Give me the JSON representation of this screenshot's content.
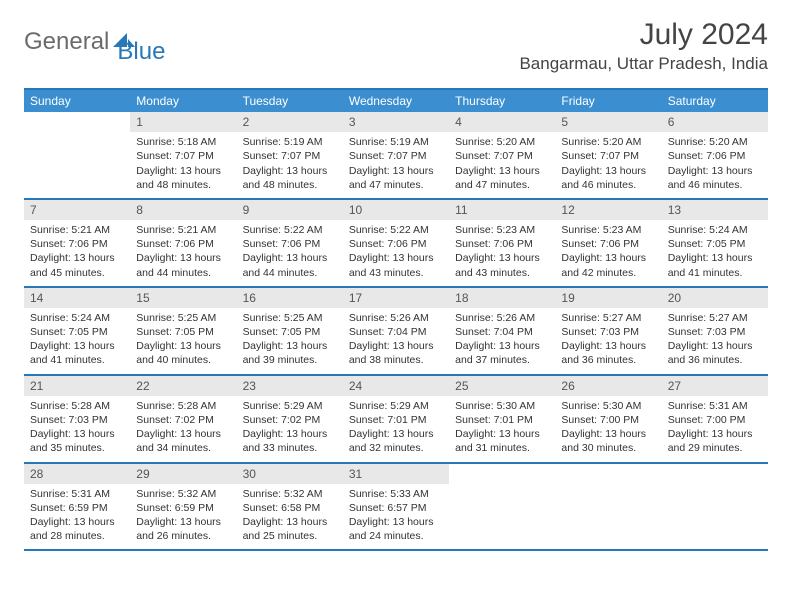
{
  "logo": {
    "text1": "General",
    "text2": "Blue"
  },
  "title": "July 2024",
  "location": "Bangarmau, Uttar Pradesh, India",
  "colors": {
    "header_bar": "#3b8fd0",
    "border": "#2878b8",
    "daynum_bg": "#e8e8e8",
    "text": "#333333"
  },
  "daysOfWeek": [
    "Sunday",
    "Monday",
    "Tuesday",
    "Wednesday",
    "Thursday",
    "Friday",
    "Saturday"
  ],
  "weeks": [
    [
      {
        "n": "",
        "empty": true
      },
      {
        "n": "1",
        "sr": "5:18 AM",
        "ss": "7:07 PM",
        "dl": "13 hours and 48 minutes."
      },
      {
        "n": "2",
        "sr": "5:19 AM",
        "ss": "7:07 PM",
        "dl": "13 hours and 48 minutes."
      },
      {
        "n": "3",
        "sr": "5:19 AM",
        "ss": "7:07 PM",
        "dl": "13 hours and 47 minutes."
      },
      {
        "n": "4",
        "sr": "5:20 AM",
        "ss": "7:07 PM",
        "dl": "13 hours and 47 minutes."
      },
      {
        "n": "5",
        "sr": "5:20 AM",
        "ss": "7:07 PM",
        "dl": "13 hours and 46 minutes."
      },
      {
        "n": "6",
        "sr": "5:20 AM",
        "ss": "7:06 PM",
        "dl": "13 hours and 46 minutes."
      }
    ],
    [
      {
        "n": "7",
        "sr": "5:21 AM",
        "ss": "7:06 PM",
        "dl": "13 hours and 45 minutes."
      },
      {
        "n": "8",
        "sr": "5:21 AM",
        "ss": "7:06 PM",
        "dl": "13 hours and 44 minutes."
      },
      {
        "n": "9",
        "sr": "5:22 AM",
        "ss": "7:06 PM",
        "dl": "13 hours and 44 minutes."
      },
      {
        "n": "10",
        "sr": "5:22 AM",
        "ss": "7:06 PM",
        "dl": "13 hours and 43 minutes."
      },
      {
        "n": "11",
        "sr": "5:23 AM",
        "ss": "7:06 PM",
        "dl": "13 hours and 43 minutes."
      },
      {
        "n": "12",
        "sr": "5:23 AM",
        "ss": "7:06 PM",
        "dl": "13 hours and 42 minutes."
      },
      {
        "n": "13",
        "sr": "5:24 AM",
        "ss": "7:05 PM",
        "dl": "13 hours and 41 minutes."
      }
    ],
    [
      {
        "n": "14",
        "sr": "5:24 AM",
        "ss": "7:05 PM",
        "dl": "13 hours and 41 minutes."
      },
      {
        "n": "15",
        "sr": "5:25 AM",
        "ss": "7:05 PM",
        "dl": "13 hours and 40 minutes."
      },
      {
        "n": "16",
        "sr": "5:25 AM",
        "ss": "7:05 PM",
        "dl": "13 hours and 39 minutes."
      },
      {
        "n": "17",
        "sr": "5:26 AM",
        "ss": "7:04 PM",
        "dl": "13 hours and 38 minutes."
      },
      {
        "n": "18",
        "sr": "5:26 AM",
        "ss": "7:04 PM",
        "dl": "13 hours and 37 minutes."
      },
      {
        "n": "19",
        "sr": "5:27 AM",
        "ss": "7:03 PM",
        "dl": "13 hours and 36 minutes."
      },
      {
        "n": "20",
        "sr": "5:27 AM",
        "ss": "7:03 PM",
        "dl": "13 hours and 36 minutes."
      }
    ],
    [
      {
        "n": "21",
        "sr": "5:28 AM",
        "ss": "7:03 PM",
        "dl": "13 hours and 35 minutes."
      },
      {
        "n": "22",
        "sr": "5:28 AM",
        "ss": "7:02 PM",
        "dl": "13 hours and 34 minutes."
      },
      {
        "n": "23",
        "sr": "5:29 AM",
        "ss": "7:02 PM",
        "dl": "13 hours and 33 minutes."
      },
      {
        "n": "24",
        "sr": "5:29 AM",
        "ss": "7:01 PM",
        "dl": "13 hours and 32 minutes."
      },
      {
        "n": "25",
        "sr": "5:30 AM",
        "ss": "7:01 PM",
        "dl": "13 hours and 31 minutes."
      },
      {
        "n": "26",
        "sr": "5:30 AM",
        "ss": "7:00 PM",
        "dl": "13 hours and 30 minutes."
      },
      {
        "n": "27",
        "sr": "5:31 AM",
        "ss": "7:00 PM",
        "dl": "13 hours and 29 minutes."
      }
    ],
    [
      {
        "n": "28",
        "sr": "5:31 AM",
        "ss": "6:59 PM",
        "dl": "13 hours and 28 minutes."
      },
      {
        "n": "29",
        "sr": "5:32 AM",
        "ss": "6:59 PM",
        "dl": "13 hours and 26 minutes."
      },
      {
        "n": "30",
        "sr": "5:32 AM",
        "ss": "6:58 PM",
        "dl": "13 hours and 25 minutes."
      },
      {
        "n": "31",
        "sr": "5:33 AM",
        "ss": "6:57 PM",
        "dl": "13 hours and 24 minutes."
      },
      {
        "n": "",
        "empty": true
      },
      {
        "n": "",
        "empty": true
      },
      {
        "n": "",
        "empty": true
      }
    ]
  ],
  "labels": {
    "sunrise": "Sunrise:",
    "sunset": "Sunset:",
    "daylight": "Daylight:"
  }
}
